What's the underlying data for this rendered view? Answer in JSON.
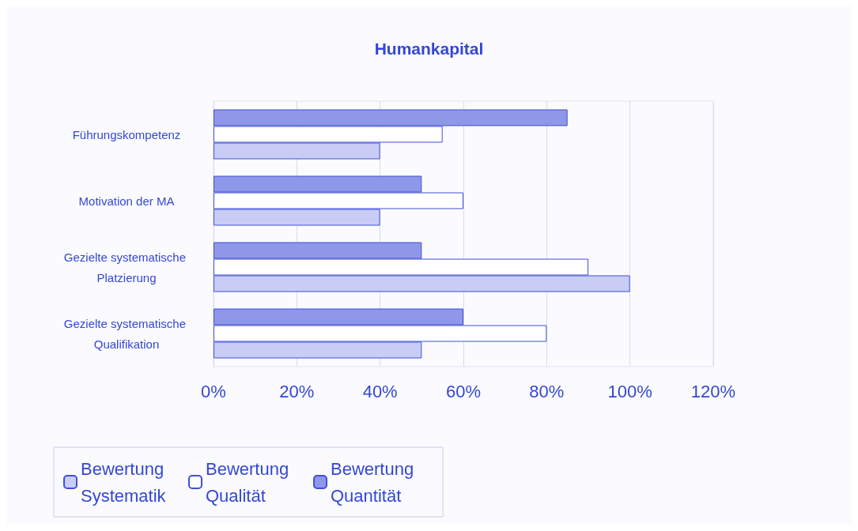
{
  "chart_data": {
    "type": "bar",
    "orientation": "horizontal",
    "title": "Humankapital",
    "categories": [
      "Führungskompetenz",
      "Motivation der MA",
      "Gezielte systematische Platzierung",
      "Gezielte systematische Qualifikation"
    ],
    "series": [
      {
        "name": "Bewertung Systematik",
        "color": "#c9cdf6",
        "values": [
          40,
          40,
          100,
          50
        ]
      },
      {
        "name": "Bewertung Qualität",
        "color": "#ffffff",
        "values": [
          55,
          60,
          90,
          80
        ]
      },
      {
        "name": "Bewertung Quantität",
        "color": "#8f97e8",
        "values": [
          85,
          50,
          50,
          60
        ]
      }
    ],
    "xlim": [
      0,
      120
    ],
    "xticks": [
      {
        "value": 0,
        "label": "0%"
      },
      {
        "value": 20,
        "label": "20%"
      },
      {
        "value": 40,
        "label": "40%"
      },
      {
        "value": 60,
        "label": "60%"
      },
      {
        "value": 80,
        "label": "80%"
      },
      {
        "value": 100,
        "label": "100%"
      },
      {
        "value": 120,
        "label": "120%"
      }
    ],
    "grid": "x",
    "legend": "bottom left"
  }
}
